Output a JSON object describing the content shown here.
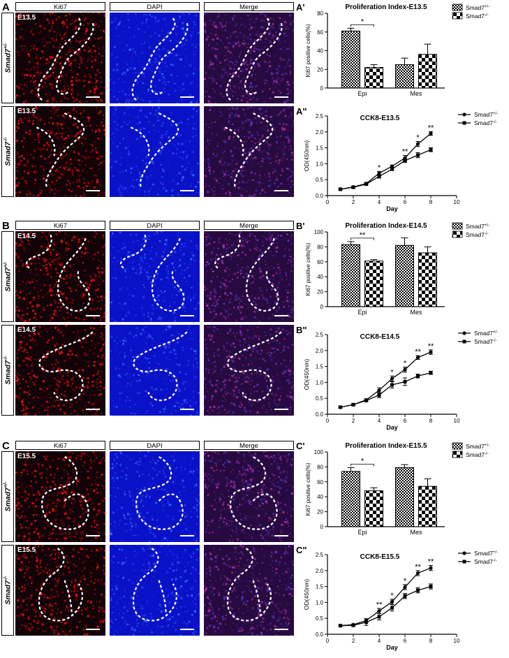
{
  "sections": [
    {
      "letter": "A",
      "micro": {
        "headers": [
          "Ki67",
          "DAPI",
          "Merge"
        ],
        "rows": [
          {
            "genotype": "Smad7+/-",
            "geno_base": "Smad7",
            "geno_sup": "+/-",
            "stage": "E13.5"
          },
          {
            "genotype": "Smad7-/-",
            "geno_base": "Smad7",
            "geno_sup": "-/-",
            "stage": "E13.5"
          }
        ]
      },
      "bar": {
        "letter": "A'",
        "chart_data": {
          "type": "bar",
          "title": "Proliferation Index-E13.5",
          "ylabel": "Ki67 positive cells(%)",
          "categories": [
            "Epi",
            "Mes"
          ],
          "ylim": [
            0,
            80
          ],
          "yticks": [
            "0",
            "20",
            "40",
            "60",
            "80"
          ],
          "series": [
            {
              "name": "Smad7+/-",
              "name_base": "Smad7",
              "name_sup": "+/-",
              "values": [
                61,
                25
              ],
              "errors": [
                3,
                7
              ]
            },
            {
              "name": "Smad7-/-",
              "name_base": "Smad7",
              "name_sup": "-/-",
              "values": [
                22,
                36
              ],
              "errors": [
                3,
                11
              ]
            }
          ],
          "significance": [
            {
              "category": "Epi",
              "label": "*"
            }
          ]
        }
      },
      "line": {
        "letter": "A\"",
        "chart_data": {
          "type": "line",
          "title": "CCK8-E13.5",
          "xlabel": "Day",
          "ylabel": "OD(450nm)",
          "xlim": [
            0,
            10
          ],
          "ylim": [
            0,
            2.5
          ],
          "xticks": [
            "0",
            "2",
            "4",
            "6",
            "8",
            "10"
          ],
          "yticks": [
            "0.0",
            "0.5",
            "1.0",
            "1.5",
            "2.0",
            "2.5"
          ],
          "x": [
            1,
            2,
            3,
            4,
            5,
            6,
            7,
            8
          ],
          "series": [
            {
              "name": "Smad7+/-",
              "name_base": "Smad7",
              "name_sup": "+/-",
              "marker": "circle",
              "values": [
                0.2,
                0.27,
                0.38,
                0.7,
                0.92,
                1.18,
                1.62,
                1.95
              ],
              "errors": [
                0.02,
                0.02,
                0.03,
                0.06,
                0.04,
                0.08,
                0.08,
                0.06
              ]
            },
            {
              "name": "Smad7-/-",
              "name_base": "Smad7",
              "name_sup": "-/-",
              "marker": "square",
              "values": [
                0.2,
                0.26,
                0.36,
                0.6,
                0.83,
                1.1,
                1.27,
                1.44
              ],
              "errors": [
                0.02,
                0.02,
                0.03,
                0.05,
                0.04,
                0.06,
                0.08,
                0.06
              ]
            }
          ],
          "annotations": [
            {
              "x": 4,
              "label": "*"
            },
            {
              "x": 6,
              "label": "**"
            },
            {
              "x": 7,
              "label": "*"
            },
            {
              "x": 8,
              "label": "**"
            }
          ]
        }
      }
    },
    {
      "letter": "B",
      "micro": {
        "headers": [
          "Ki67",
          "DAPI",
          "Merge"
        ],
        "rows": [
          {
            "genotype": "Smad7+/-",
            "geno_base": "Smad7",
            "geno_sup": "+/-",
            "stage": "E14.5"
          },
          {
            "genotype": "Smad7-/-",
            "geno_base": "Smad7",
            "geno_sup": "-/-",
            "stage": "E14.5"
          }
        ]
      },
      "bar": {
        "letter": "B'",
        "chart_data": {
          "type": "bar",
          "title": "Proliferation Index-E14.5",
          "ylabel": "Ki67 positive cells(%)",
          "categories": [
            "Epi",
            "Mes"
          ],
          "ylim": [
            0,
            100
          ],
          "yticks": [
            "0",
            "20",
            "40",
            "60",
            "80",
            "100"
          ],
          "series": [
            {
              "name": "Smad7+/-",
              "name_base": "Smad7",
              "name_sup": "+/-",
              "values": [
                83,
                82
              ],
              "errors": [
                4,
                10
              ]
            },
            {
              "name": "Smad7-/-",
              "name_base": "Smad7",
              "name_sup": "-/-",
              "values": [
                61,
                72
              ],
              "errors": [
                2,
                8
              ]
            }
          ],
          "significance": [
            {
              "category": "Epi",
              "label": "**"
            }
          ]
        }
      },
      "line": {
        "letter": "B\"",
        "chart_data": {
          "type": "line",
          "title": "CCK8-E14.5",
          "xlabel": "Day",
          "ylabel": "OD(450nm)",
          "xlim": [
            0,
            10
          ],
          "ylim": [
            0,
            2.5
          ],
          "xticks": [
            "0",
            "2",
            "4",
            "6",
            "8",
            "10"
          ],
          "yticks": [
            "0.0",
            "0.5",
            "1.0",
            "1.5",
            "2.0",
            "2.5"
          ],
          "x": [
            1,
            2,
            3,
            4,
            5,
            6,
            7,
            8
          ],
          "series": [
            {
              "name": "Smad7+/-",
              "name_base": "Smad7",
              "name_sup": "+/-",
              "marker": "circle",
              "values": [
                0.22,
                0.3,
                0.45,
                0.75,
                1.12,
                1.4,
                1.78,
                1.95
              ],
              "errors": [
                0.02,
                0.02,
                0.03,
                0.08,
                0.08,
                0.08,
                0.06,
                0.07
              ]
            },
            {
              "name": "Smad7-/-",
              "name_base": "Smad7",
              "name_sup": "-/-",
              "marker": "square",
              "values": [
                0.22,
                0.3,
                0.43,
                0.6,
                0.92,
                1.02,
                1.2,
                1.3
              ],
              "errors": [
                0.02,
                0.02,
                0.03,
                0.08,
                0.1,
                0.12,
                0.06,
                0.05
              ]
            }
          ],
          "annotations": [
            {
              "x": 5,
              "label": "*"
            },
            {
              "x": 6,
              "label": "*"
            },
            {
              "x": 7,
              "label": "**"
            },
            {
              "x": 8,
              "label": "**"
            }
          ]
        }
      }
    },
    {
      "letter": "C",
      "micro": {
        "headers": [
          "Ki67",
          "DAPI",
          "Merge"
        ],
        "rows": [
          {
            "genotype": "Smad7+/-",
            "geno_base": "Smad7",
            "geno_sup": "+/-",
            "stage": "E15.5"
          },
          {
            "genotype": "Smad7-/-",
            "geno_base": "Smad7",
            "geno_sup": "-/-",
            "stage": "E15.5"
          }
        ]
      },
      "bar": {
        "letter": "C'",
        "chart_data": {
          "type": "bar",
          "title": "Proliferation Index-E15.5",
          "ylabel": "Ki67 positive cells(%)",
          "categories": [
            "Epi",
            "Mes"
          ],
          "ylim": [
            0,
            100
          ],
          "yticks": [
            "0",
            "20",
            "40",
            "60",
            "80",
            "100"
          ],
          "series": [
            {
              "name": "Smad7+/-",
              "name_base": "Smad7",
              "name_sup": "+/-",
              "values": [
                74,
                79
              ],
              "errors": [
                5,
                4
              ]
            },
            {
              "name": "Smad7-/-",
              "name_base": "Smad7",
              "name_sup": "-/-",
              "values": [
                48,
                54
              ],
              "errors": [
                4,
                10
              ]
            }
          ],
          "significance": [
            {
              "category": "Epi",
              "label": "*"
            }
          ]
        }
      },
      "line": {
        "letter": "C\"",
        "chart_data": {
          "type": "line",
          "title": "CCK8-E15.5",
          "xlabel": "Day",
          "ylabel": "OD(450nm)",
          "xlim": [
            0,
            10
          ],
          "ylim": [
            0,
            2.5
          ],
          "xticks": [
            "0",
            "2",
            "4",
            "6",
            "8",
            "10"
          ],
          "yticks": [
            "0.0",
            "0.5",
            "1.0",
            "1.5",
            "2.0",
            "2.5"
          ],
          "x": [
            1,
            2,
            3,
            4,
            5,
            6,
            7,
            8
          ],
          "series": [
            {
              "name": "Smad7+/-",
              "name_base": "Smad7",
              "name_sup": "+/-",
              "marker": "circle",
              "values": [
                0.27,
                0.3,
                0.43,
                0.73,
                1.02,
                1.48,
                1.92,
                2.08
              ],
              "errors": [
                0.02,
                0.02,
                0.06,
                0.08,
                0.08,
                0.08,
                0.08,
                0.08
              ]
            },
            {
              "name": "Smad7-/-",
              "name_base": "Smad7",
              "name_sup": "-/-",
              "marker": "square",
              "values": [
                0.27,
                0.28,
                0.38,
                0.55,
                0.83,
                1.2,
                1.38,
                1.5
              ],
              "errors": [
                0.02,
                0.02,
                0.1,
                0.1,
                0.1,
                0.08,
                0.08,
                0.08
              ]
            }
          ],
          "annotations": [
            {
              "x": 4,
              "label": "**"
            },
            {
              "x": 5,
              "label": "*"
            },
            {
              "x": 6,
              "label": "*"
            },
            {
              "x": 7,
              "label": "**"
            },
            {
              "x": 8,
              "label": "**"
            }
          ]
        }
      }
    }
  ]
}
